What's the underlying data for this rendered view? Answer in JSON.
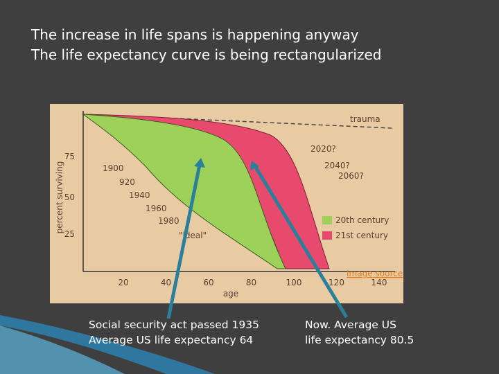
{
  "slide": {
    "title_lines": [
      "The increase in life spans is happening anyway",
      "The life expectancy curve is being rectangularized"
    ],
    "figure": {
      "y_axis_label": "percent surviving",
      "x_axis_label": "age",
      "y_ticks": [
        "75",
        "50",
        "25"
      ],
      "x_ticks": [
        "20",
        "40",
        "60",
        "80",
        "100",
        "120",
        "140"
      ],
      "curve_labels": [
        "trauma",
        "2020?",
        "2040?",
        "2060?",
        "1900",
        "920",
        "1940",
        "1960",
        "1980",
        "\"ideal\""
      ],
      "legend": [
        "20th century",
        "21st century"
      ],
      "source_link": "Image source"
    },
    "captions": [
      [
        "Social security act passed 1935",
        "Average US life expectancy 64"
      ],
      [
        "Now.  Average US",
        "life expectancy 80.5"
      ]
    ]
  }
}
